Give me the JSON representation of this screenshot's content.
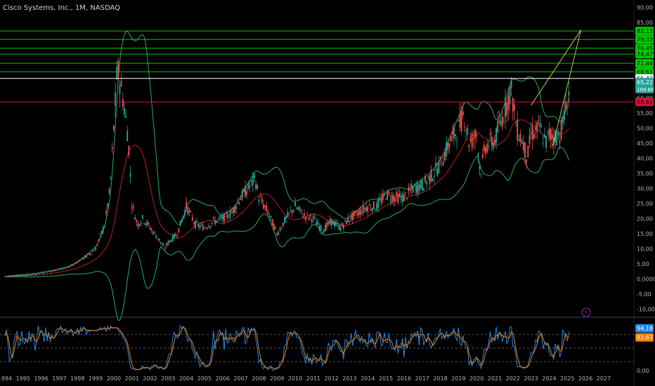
{
  "header": {
    "title": "Cisco Systems, Inc., 1M, NASDAQ"
  },
  "colors": {
    "up": "#26a69a",
    "down": "#ef5350",
    "bg": "#000000",
    "text": "#b2b5be",
    "green": "#00c800",
    "red": "#d6143a",
    "yellow": "#c8c84a",
    "bb": "#2aa86d",
    "ma": "#b22222",
    "k": "#1e88e5",
    "d": "#f57c00"
  },
  "chart_data": {
    "type": "candlestick",
    "y_ticks": [
      "90,00",
      "85,00",
      "80,00",
      "75,00",
      "70,00",
      "65,00",
      "60,00",
      "55,00",
      "50,00",
      "45,00",
      "40,00",
      "35,00",
      "30,00",
      "25,00",
      "20,00",
      "15,00",
      "10,00",
      "5,00",
      "0,0000",
      "-5,00",
      "-10,00"
    ],
    "x_ticks": [
      "1994",
      "1995",
      "1996",
      "1997",
      "1998",
      "1999",
      "2000",
      "2001",
      "2002",
      "2003",
      "2004",
      "2005",
      "2006",
      "2007",
      "2008",
      "2009",
      "2010",
      "2011",
      "2012",
      "2013",
      "2014",
      "2015",
      "2016",
      "2017",
      "2018",
      "2019",
      "2020",
      "2021",
      "2022",
      "2023",
      "2024",
      "2025",
      "2026",
      "2027"
    ],
    "ylim": [
      -12,
      91
    ],
    "xlim": [
      1994.0,
      2028.4
    ],
    "horizontal_lines": [
      {
        "value": 82.13,
        "label": "82,13",
        "color": "#00c800"
      },
      {
        "value": 79.33,
        "label": "79,33",
        "color": "#00c800"
      },
      {
        "value": 76.45,
        "label": "76,45",
        "color": "#00c800"
      },
      {
        "value": 74.47,
        "label": "74,47",
        "color": "#00c800"
      },
      {
        "value": 71.44,
        "label": "71,44",
        "color": "#00c800"
      },
      {
        "value": 68.61,
        "label": "68,61",
        "color": "#00c800"
      },
      {
        "value": 66.42,
        "label": "66,42",
        "color": "#ffffff"
      },
      {
        "value": 58.63,
        "label": "58,63",
        "color": "#d6143a"
      }
    ],
    "last_price": {
      "value": 65.22,
      "label": "65,22",
      "countdown": "10d 6h"
    },
    "trendlines": [
      {
        "x": [
          2023.0,
          2025.75
        ],
        "y": [
          57.5,
          82.5
        ]
      },
      {
        "x": [
          2024.2,
          2025.75
        ],
        "y": [
          44.0,
          82.5
        ]
      }
    ],
    "close_anchors": {
      "x": [
        1994.0,
        1995.5,
        1996.5,
        1997.5,
        1998.5,
        1999.0,
        1999.5,
        1999.8,
        2000.0,
        2000.2,
        2000.5,
        2000.8,
        2001.0,
        2001.3,
        2001.6,
        2002.0,
        2002.5,
        2002.8,
        2003.0,
        2003.5,
        2004.0,
        2004.5,
        2005.0,
        2005.5,
        2006.0,
        2006.5,
        2007.0,
        2007.8,
        2008.0,
        2008.5,
        2009.0,
        2009.5,
        2010.0,
        2010.5,
        2011.0,
        2011.5,
        2012.0,
        2012.5,
        2013.0,
        2013.5,
        2014.0,
        2014.5,
        2015.0,
        2015.5,
        2016.0,
        2016.5,
        2017.0,
        2017.5,
        2018.0,
        2018.5,
        2019.0,
        2019.3,
        2019.6,
        2020.0,
        2020.2,
        2020.5,
        2021.0,
        2021.5,
        2021.9,
        2022.2,
        2022.5,
        2022.8,
        2023.0,
        2023.5,
        2023.8,
        2024.0,
        2024.3,
        2024.6,
        2025.0,
        2025.15
      ],
      "y": [
        0.8,
        1.5,
        2.5,
        3.8,
        7.5,
        10,
        18,
        30,
        50,
        70,
        60,
        47,
        25,
        18,
        20,
        17,
        13,
        10,
        12,
        15,
        24,
        18,
        17,
        19,
        20,
        22,
        27,
        33,
        27,
        22,
        15,
        20,
        24,
        21,
        20,
        16,
        19,
        17,
        20,
        22,
        24,
        24,
        28,
        27,
        27,
        30,
        31,
        34,
        38,
        45,
        50,
        55,
        45,
        48,
        35,
        44,
        46,
        55,
        63,
        50,
        46,
        40,
        48,
        50,
        45,
        48,
        47,
        48,
        58,
        65
      ]
    },
    "indicators": {
      "bollinger_bands": true,
      "moving_average": true,
      "stochastic": {
        "k": 94.18,
        "d": 92.67,
        "k_label": "94,18",
        "d_label": "92,67",
        "y_ticks": [
          "0,00"
        ],
        "levels": [
          20,
          50,
          80
        ]
      }
    }
  }
}
